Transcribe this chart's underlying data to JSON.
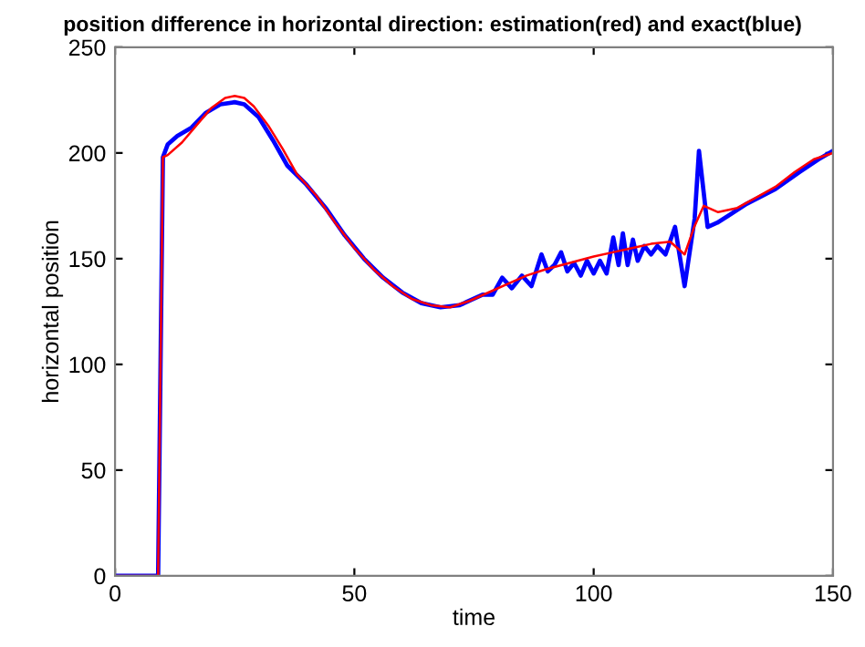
{
  "chart_data": {
    "type": "line",
    "title": "position difference in horizontal direction: estimation(red) and exact(blue)",
    "xlabel": "time",
    "ylabel": "horizontal position",
    "xlim": [
      0,
      150
    ],
    "ylim": [
      0,
      250
    ],
    "xticks": [
      0,
      50,
      100,
      150
    ],
    "yticks": [
      0,
      50,
      100,
      150,
      200,
      250
    ],
    "grid": false,
    "legend": false,
    "series": [
      {
        "color": "#0000ff",
        "x": [
          0,
          9,
          10,
          11,
          13,
          16,
          19,
          22,
          25,
          27,
          30,
          33,
          36,
          40,
          44,
          48,
          52,
          56,
          60,
          64,
          68,
          72,
          76.8,
          78.9,
          80.9,
          82.9,
          85.0,
          87.0,
          89.1,
          90.4,
          91.8,
          93.2,
          94.5,
          95.9,
          97.3,
          98.6,
          100.0,
          101.3,
          102.7,
          104.1,
          105.2,
          106.1,
          107.1,
          108.2,
          109.2,
          110.6,
          112.0,
          113.3,
          115.0,
          117.0,
          119.0,
          121.1,
          122.0,
          123.8,
          125.8,
          127.9,
          132,
          138,
          143,
          147,
          150
        ],
        "values": [
          0,
          0,
          198,
          204,
          208,
          212,
          219,
          223,
          224,
          223,
          217,
          206,
          194,
          185,
          174,
          161,
          150,
          141,
          134,
          129,
          127,
          128,
          133,
          133,
          141,
          136,
          142,
          137,
          152,
          144,
          147,
          153,
          144,
          148,
          142,
          149,
          143,
          149,
          143,
          160,
          147,
          162,
          147,
          159,
          149,
          156,
          152,
          156,
          152,
          165,
          137,
          169,
          201,
          165,
          167,
          170,
          176,
          183,
          191,
          197,
          201
        ]
      },
      {
        "color": "#ff0000",
        "x": [
          0,
          9,
          10,
          11,
          14,
          17,
          20,
          23,
          25,
          27,
          29,
          32,
          35,
          38,
          42,
          46,
          50,
          54,
          58,
          62,
          66,
          70,
          74,
          78,
          82,
          86,
          90,
          95,
          100,
          104,
          108,
          112,
          116,
          119,
          121,
          123,
          126,
          130,
          134,
          138,
          142,
          146,
          150
        ],
        "values": [
          0,
          0,
          198,
          199,
          205,
          213,
          221,
          226,
          227,
          226,
          222,
          213,
          202,
          190,
          180,
          167,
          155,
          145,
          137,
          131,
          128,
          127,
          130,
          134,
          138,
          142,
          145,
          148,
          151,
          153,
          155,
          157,
          158,
          152,
          165,
          175,
          172,
          174,
          179,
          184,
          191,
          197,
          200
        ]
      }
    ]
  }
}
